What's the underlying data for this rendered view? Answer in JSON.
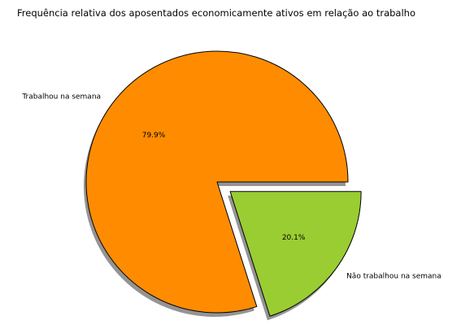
{
  "chart_data": {
    "type": "pie",
    "title": "Frequência relativa dos aposentados economicamente ativos em relação ao trabalho",
    "slices": [
      {
        "label": "Trabalhou na semana",
        "value": 79.9,
        "pct_label": "79.9%",
        "color": "#ff8c00",
        "explode": false
      },
      {
        "label": "Não trabalhou na semana",
        "value": 20.1,
        "pct_label": "20.1%",
        "color": "#9acd32",
        "explode": true
      }
    ],
    "start_angle_deg": 0,
    "direction": "counterclockwise",
    "shadow": true,
    "legend": "none"
  }
}
